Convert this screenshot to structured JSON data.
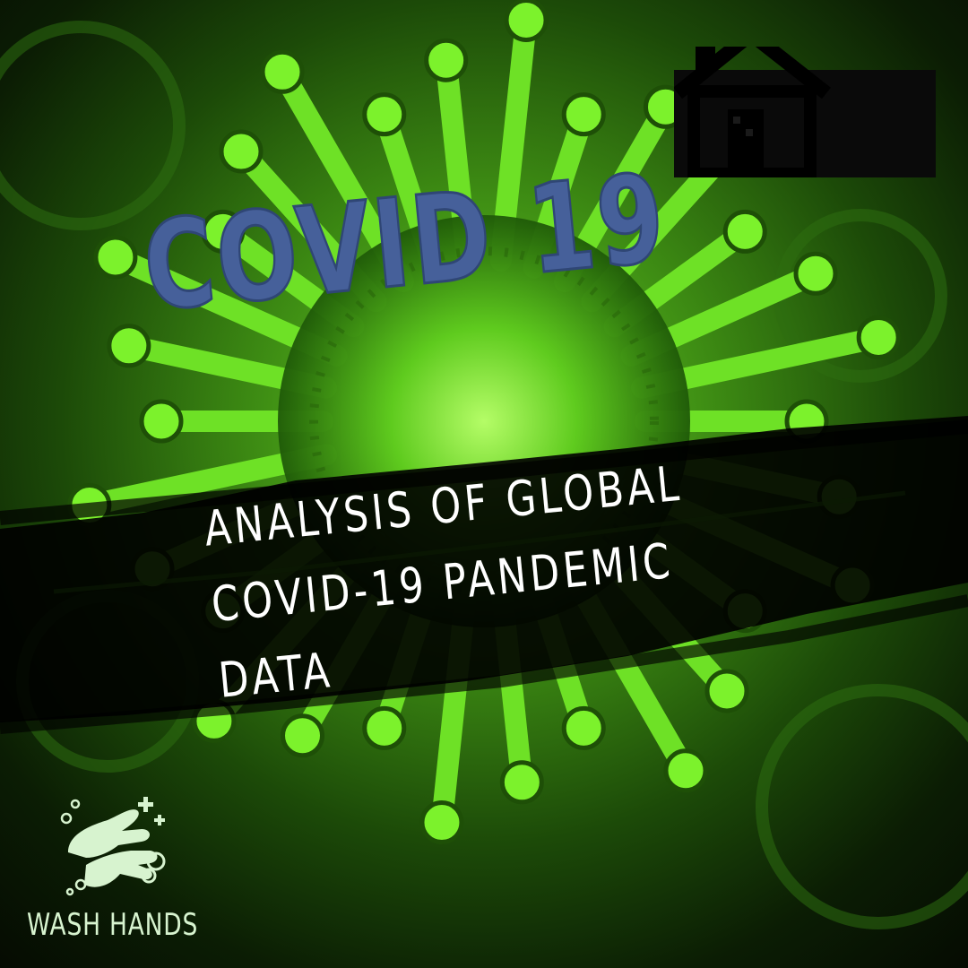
{
  "title": "COVID 19",
  "subtitle_lines": [
    "ANALYSIS OF GLOBAL",
    "COVID-19 PANDEMIC",
    "DATA"
  ],
  "badge_label": "WASH HANDS",
  "icons": [
    "home-icon",
    "wash-hands-icon",
    "virus-illustration"
  ],
  "colors": {
    "title": "#46609a",
    "virus_glow": "#7cf22c",
    "band": "#000000",
    "subtitle": "#ffffff",
    "badge": "#d7f3cf"
  }
}
